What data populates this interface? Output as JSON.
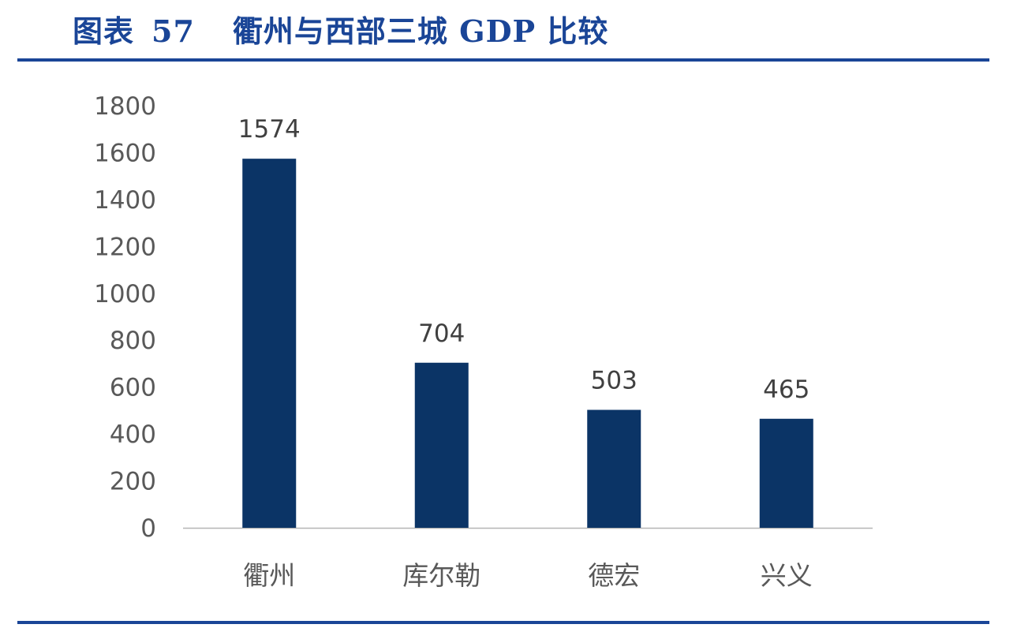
{
  "title": {
    "label": "图表",
    "number": "57",
    "text": "衢州与西部三城 GDP 比较"
  },
  "chart_data": {
    "type": "bar",
    "categories": [
      "衢州",
      "库尔勒",
      "德宏",
      "兴义"
    ],
    "values": [
      1574,
      704,
      503,
      465
    ],
    "data_labels": [
      "1574",
      "704",
      "503",
      "465"
    ],
    "ylim": [
      0,
      1800
    ],
    "yticks": [
      0,
      200,
      400,
      600,
      800,
      1000,
      1200,
      1400,
      1600,
      1800
    ],
    "grid": false,
    "legend": "none",
    "colors": {
      "bar": "#0b3466",
      "axis": "#b5b5b5",
      "tick_text": "#595959",
      "label_text": "#404040",
      "title": "#1a4597"
    }
  }
}
